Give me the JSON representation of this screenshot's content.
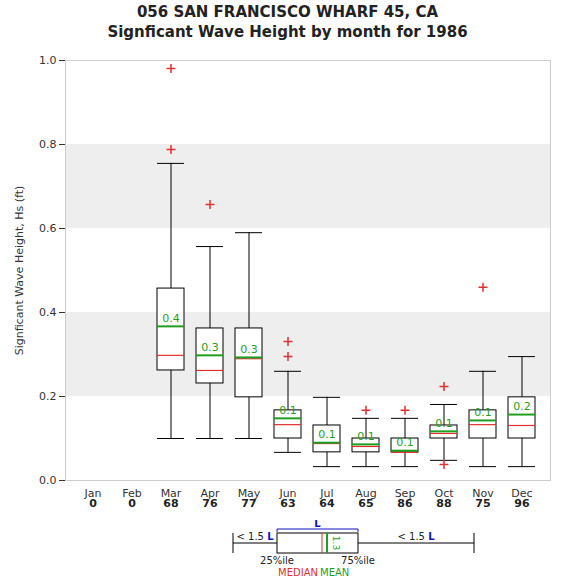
{
  "chart_data": {
    "type": "box",
    "title": "056   SAN FRANCISCO WHARF 45, CA",
    "subtitle": "Signficant Wave Height by month for 1986",
    "y_label": "Signficant Wave Height, Hs (ft)",
    "categories": [
      "Jan",
      "Feb",
      "Mar",
      "Apr",
      "May",
      "Jun",
      "Jul",
      "Aug",
      "Sep",
      "Oct",
      "Nov",
      "Dec"
    ],
    "counts": [
      0,
      0,
      68,
      76,
      77,
      63,
      64,
      65,
      86,
      88,
      75,
      96
    ],
    "whisker_low": [
      null,
      null,
      0.1,
      0.1,
      0.1,
      0.067,
      0.033,
      0.033,
      0.033,
      0.048,
      0.033,
      0.033
    ],
    "q1": [
      null,
      null,
      0.262,
      0.231,
      0.198,
      0.1,
      0.067,
      0.067,
      0.067,
      0.1,
      0.1,
      0.1
    ],
    "median": [
      null,
      null,
      0.298,
      0.262,
      0.29,
      0.133,
      0.088,
      0.081,
      0.067,
      0.112,
      0.133,
      0.131
    ],
    "q3": [
      null,
      null,
      0.457,
      0.362,
      0.362,
      0.167,
      0.131,
      0.1,
      0.1,
      0.131,
      0.167,
      0.198
    ],
    "whisker_high": [
      null,
      null,
      0.755,
      0.557,
      0.59,
      0.26,
      0.198,
      0.148,
      0.148,
      0.181,
      0.26,
      0.295
    ],
    "mean": [
      null,
      null,
      0.367,
      0.298,
      0.293,
      0.148,
      0.09,
      0.086,
      0.071,
      0.117,
      0.143,
      0.157
    ],
    "value_labels": [
      null,
      null,
      "0.4",
      "0.3",
      "0.3",
      "0.1",
      "0.1",
      "0.1",
      "0.1",
      "0.1",
      "0.1",
      "0.2"
    ],
    "outliers": [
      [],
      [],
      [
        0.981,
        0.788
      ],
      [
        0.657
      ],
      [],
      [
        0.331,
        0.295
      ],
      [],
      [
        0.167
      ],
      [
        0.167
      ],
      [
        0.224,
        0.038
      ],
      [
        0.46
      ],
      []
    ],
    "ylim": [
      0,
      1
    ],
    "yticks": [
      {
        "value": 0,
        "label": "0.0"
      },
      {
        "value": 0.2,
        "label": "0.2"
      },
      {
        "value": 0.4,
        "label": "0.4"
      },
      {
        "value": 0.6,
        "label": "0.6"
      },
      {
        "value": 0.8,
        "label": "0.8"
      },
      {
        "value": 1,
        "label": "1.0"
      }
    ],
    "grid": true,
    "data_labels": true,
    "box_key": {
      "whisker": "< 1.5 L",
      "iqr": "L",
      "q1": "25%ile",
      "q3": "75%ile",
      "median": "MEDIAN",
      "mean": "MEAN",
      "mean_value": "1.3"
    }
  }
}
